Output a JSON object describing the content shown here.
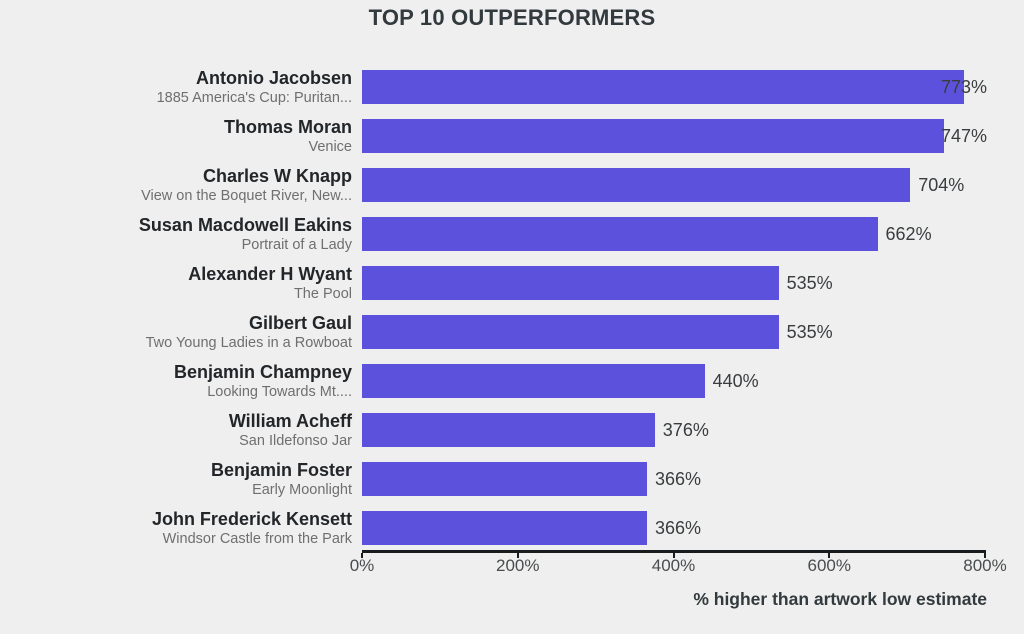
{
  "title": "TOP 10 OUTPERFORMERS",
  "axis_caption": "% higher than artwork low estimate",
  "chart_data": {
    "type": "bar",
    "orientation": "horizontal",
    "title": "TOP 10 OUTPERFORMERS",
    "xlabel": "% higher than artwork low estimate",
    "ylabel": "",
    "xlim": [
      0,
      800
    ],
    "grid": false,
    "legend": false,
    "bar_color": "#5b51dd",
    "background_color": "#efefef",
    "x_ticks": [
      {
        "value": 0,
        "label": "0%"
      },
      {
        "value": 200,
        "label": "200%"
      },
      {
        "value": 400,
        "label": "400%"
      },
      {
        "value": 600,
        "label": "600%"
      },
      {
        "value": 800,
        "label": "800%"
      }
    ],
    "rows": [
      {
        "artist": "Antonio Jacobsen",
        "artwork": "1885 America's Cup: Puritan...",
        "value": 773,
        "value_label": "773%"
      },
      {
        "artist": "Thomas Moran",
        "artwork": "Venice",
        "value": 747,
        "value_label": "747%"
      },
      {
        "artist": "Charles W Knapp",
        "artwork": "View on the Boquet River, New...",
        "value": 704,
        "value_label": "704%"
      },
      {
        "artist": "Susan Macdowell Eakins",
        "artwork": "Portrait of a Lady",
        "value": 662,
        "value_label": "662%"
      },
      {
        "artist": "Alexander H Wyant",
        "artwork": "The Pool",
        "value": 535,
        "value_label": "535%"
      },
      {
        "artist": "Gilbert Gaul",
        "artwork": "Two Young Ladies in a Rowboat",
        "value": 535,
        "value_label": "535%"
      },
      {
        "artist": "Benjamin Champney",
        "artwork": "Looking Towards Mt....",
        "value": 440,
        "value_label": "440%"
      },
      {
        "artist": "William Acheff",
        "artwork": "San Ildefonso Jar",
        "value": 376,
        "value_label": "376%"
      },
      {
        "artist": "Benjamin Foster",
        "artwork": "Early Moonlight",
        "value": 366,
        "value_label": "366%"
      },
      {
        "artist": "John Frederick Kensett",
        "artwork": "Windsor Castle from the Park",
        "value": 366,
        "value_label": "366%"
      }
    ]
  }
}
